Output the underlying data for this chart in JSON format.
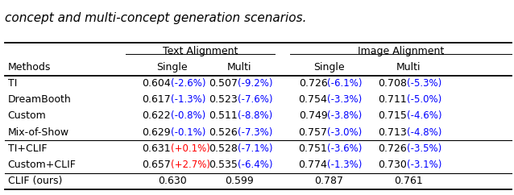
{
  "caption": "concept and multi-concept generation scenarios.",
  "col_group_labels": [
    "Text Alignment",
    "Image Alignment"
  ],
  "sub_headers": [
    "Methods",
    "Single",
    "Multi",
    "Single",
    "Multi"
  ],
  "rows": [
    {
      "method": "TI",
      "vals": [
        "0.604",
        "0.507",
        "0.726",
        "0.708"
      ],
      "diffs": [
        "-2.6%",
        "-9.2%",
        "-6.1%",
        "-5.3%"
      ],
      "diff_colors": [
        "#0000ff",
        "#0000ff",
        "#0000ff",
        "#0000ff"
      ]
    },
    {
      "method": "DreamBooth",
      "vals": [
        "0.617",
        "0.523",
        "0.754",
        "0.711"
      ],
      "diffs": [
        "-1.3%",
        "-7.6%",
        "-3.3%",
        "-5.0%"
      ],
      "diff_colors": [
        "#0000ff",
        "#0000ff",
        "#0000ff",
        "#0000ff"
      ]
    },
    {
      "method": "Custom",
      "vals": [
        "0.622",
        "0.511",
        "0.749",
        "0.715"
      ],
      "diffs": [
        "-0.8%",
        "-8.8%",
        "-3.8%",
        "-4.6%"
      ],
      "diff_colors": [
        "#0000ff",
        "#0000ff",
        "#0000ff",
        "#0000ff"
      ]
    },
    {
      "method": "Mix-of-Show",
      "vals": [
        "0.629",
        "0.526",
        "0.757",
        "0.713"
      ],
      "diffs": [
        "-0.1%",
        "-7.3%",
        "-3.0%",
        "-4.8%"
      ],
      "diff_colors": [
        "#0000ff",
        "#0000ff",
        "#0000ff",
        "#0000ff"
      ]
    },
    {
      "method": "TI+CLIF",
      "vals": [
        "0.631",
        "0.528",
        "0.751",
        "0.726"
      ],
      "diffs": [
        "+0.1%",
        "-7.1%",
        "-3.6%",
        "-3.5%"
      ],
      "diff_colors": [
        "#ff0000",
        "#0000ff",
        "#0000ff",
        "#0000ff"
      ]
    },
    {
      "method": "Custom+CLIF",
      "vals": [
        "0.657",
        "0.535",
        "0.774",
        "0.730"
      ],
      "diffs": [
        "+2.7%",
        "-6.4%",
        "-1.3%",
        "-3.1%"
      ],
      "diff_colors": [
        "#ff0000",
        "#0000ff",
        "#0000ff",
        "#0000ff"
      ]
    },
    {
      "method": "CLIF (ours)",
      "vals": [
        "0.630",
        "0.599",
        "0.787",
        "0.761"
      ],
      "diffs": [
        "",
        "",
        "",
        ""
      ],
      "diff_colors": [
        "#000000",
        "#000000",
        "#000000",
        "#000000"
      ]
    }
  ],
  "separator_after_rows": [
    3,
    5
  ],
  "figsize": [
    6.38,
    2.42
  ],
  "dpi": 100,
  "fs_caption": 11,
  "fs_header": 9,
  "fs_data": 9,
  "fs_diff": 8.5
}
